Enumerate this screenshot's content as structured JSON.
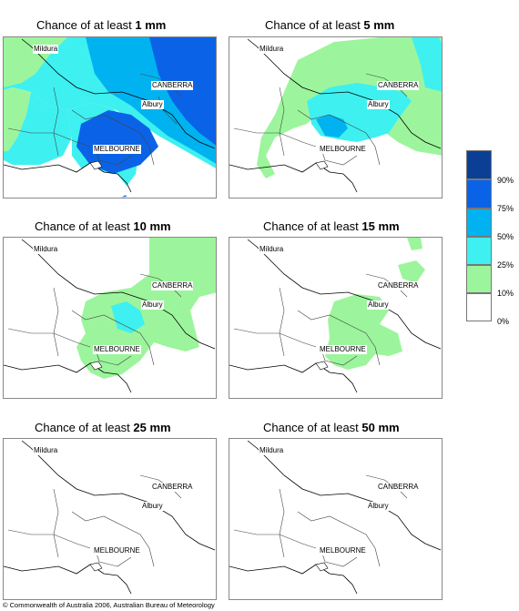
{
  "panels": [
    {
      "title_prefix": "Chance of at least ",
      "amount": "1 mm"
    },
    {
      "title_prefix": "Chance of at least ",
      "amount": "5 mm"
    },
    {
      "title_prefix": "Chance of at least ",
      "amount": "10 mm"
    },
    {
      "title_prefix": "Chance of at least ",
      "amount": "15 mm"
    },
    {
      "title_prefix": "Chance of at least ",
      "amount": "25 mm"
    },
    {
      "title_prefix": "Chance of at least ",
      "amount": "50 mm"
    }
  ],
  "cities": {
    "mildura": "Mildura",
    "canberra": "CANBERRA",
    "albury": "Albury",
    "melbourne": "MELBOURNE"
  },
  "legend": {
    "bins": [
      {
        "label": "90%",
        "color": "#0b3f96"
      },
      {
        "label": "75%",
        "color": "#0a63e6"
      },
      {
        "label": "50%",
        "color": "#00b3f0"
      },
      {
        "label": "25%",
        "color": "#3ef0f0"
      },
      {
        "label": "10%",
        "color": "#9cf59c"
      },
      {
        "label": "0%",
        "color": "#ffffff"
      }
    ]
  },
  "footer": "© Commonwealth of Australia 2006, Australian Bureau of Meteorology"
}
